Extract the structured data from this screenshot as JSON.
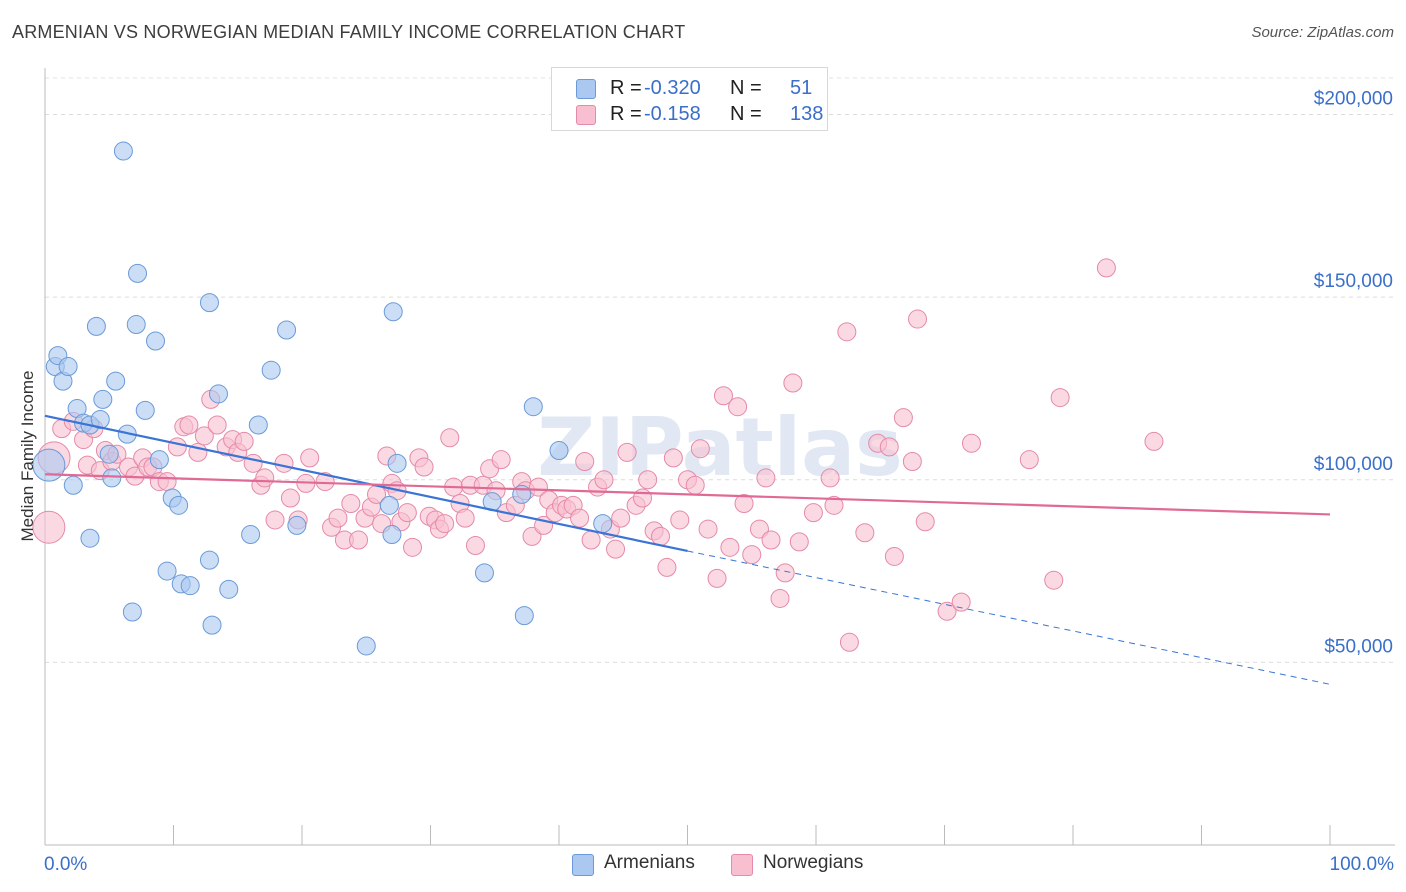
{
  "title": "ARMENIAN VS NORWEGIAN MEDIAN FAMILY INCOME CORRELATION CHART",
  "source": "Source: ZipAtlas.com",
  "watermark": "ZIPatlas",
  "legend": {
    "rows": [
      {
        "r_label": "R =",
        "r_value": "-0.320",
        "n_label": "N =",
        "n_value": "51",
        "color": "#aac8f0",
        "border": "#6a9ad8"
      },
      {
        "r_label": "R =",
        "r_value": "-0.158",
        "n_label": "N =",
        "n_value": "138",
        "color": "#f8bfd0",
        "border": "#e58aa8"
      }
    ]
  },
  "bottom_legend": [
    {
      "label": "Armenians",
      "color": "#aac8f0",
      "border": "#6a9ad8"
    },
    {
      "label": "Norwegians",
      "color": "#f8bfd0",
      "border": "#e58aa8"
    }
  ],
  "chart_data": {
    "type": "scatter",
    "title": "ARMENIAN VS NORWEGIAN MEDIAN FAMILY INCOME CORRELATION CHART",
    "xlabel": "",
    "ylabel": "Median Family Income",
    "xlim": [
      0,
      100
    ],
    "ylim": [
      0,
      210000
    ],
    "x_tick_labels": [
      "0.0%",
      "100.0%"
    ],
    "y_ticks": [
      50000,
      100000,
      150000,
      200000
    ],
    "y_tick_labels": [
      "$50,000",
      "$100,000",
      "$150,000",
      "$200,000"
    ],
    "grid": true,
    "legend_position": "top-center",
    "series": [
      {
        "name": "Armenians",
        "color": "#aac8f0",
        "stroke": "#6a9ad8",
        "trend_color": "#3a74d4",
        "trend": {
          "x0": 0,
          "y0": 117500,
          "x1": 50,
          "y1": 80500,
          "dashed_to_x": 100,
          "dashed_to_y": 44000
        },
        "points": [
          [
            0.3,
            104000
          ],
          [
            0.8,
            131000
          ],
          [
            1.0,
            134000
          ],
          [
            1.4,
            127000
          ],
          [
            1.8,
            131000
          ],
          [
            2.2,
            98500
          ],
          [
            2.5,
            119500
          ],
          [
            3.0,
            115500
          ],
          [
            3.5,
            115000
          ],
          [
            3.5,
            84000
          ],
          [
            4.0,
            142000
          ],
          [
            4.3,
            116500
          ],
          [
            4.5,
            122000
          ],
          [
            5.0,
            107000
          ],
          [
            5.2,
            100500
          ],
          [
            5.5,
            127000
          ],
          [
            6.1,
            190000
          ],
          [
            6.4,
            112500
          ],
          [
            6.8,
            63800
          ],
          [
            7.2,
            156500
          ],
          [
            7.1,
            142500
          ],
          [
            7.8,
            119000
          ],
          [
            8.6,
            138000
          ],
          [
            8.9,
            105500
          ],
          [
            9.5,
            75000
          ],
          [
            9.9,
            95000
          ],
          [
            10.4,
            93000
          ],
          [
            10.6,
            71500
          ],
          [
            11.3,
            71000
          ],
          [
            12.8,
            78000
          ],
          [
            12.8,
            148500
          ],
          [
            13.0,
            60200
          ],
          [
            13.5,
            123500
          ],
          [
            14.3,
            70000
          ],
          [
            16.0,
            85000
          ],
          [
            16.6,
            115000
          ],
          [
            17.6,
            130000
          ],
          [
            18.8,
            141000
          ],
          [
            19.6,
            87500
          ],
          [
            25.0,
            54500
          ],
          [
            26.8,
            93000
          ],
          [
            27.0,
            85000
          ],
          [
            27.1,
            146000
          ],
          [
            27.4,
            104500
          ],
          [
            34.2,
            74500
          ],
          [
            34.8,
            94000
          ],
          [
            37.1,
            96000
          ],
          [
            37.3,
            62800
          ],
          [
            38.0,
            120000
          ],
          [
            40.0,
            108000
          ],
          [
            43.4,
            88000
          ]
        ]
      },
      {
        "name": "Norwegians",
        "color": "#f8bfd0",
        "stroke": "#e58aa8",
        "trend_color": "#e06a95",
        "trend": {
          "x0": 0,
          "y0": 101500,
          "x1": 100,
          "y1": 90500
        },
        "points": [
          [
            0.3,
            87000
          ],
          [
            0.7,
            106000
          ],
          [
            1.3,
            114000
          ],
          [
            2.2,
            116000
          ],
          [
            3.0,
            111000
          ],
          [
            3.3,
            104000
          ],
          [
            3.8,
            114000
          ],
          [
            4.3,
            102500
          ],
          [
            4.7,
            108000
          ],
          [
            5.2,
            105000
          ],
          [
            5.6,
            107000
          ],
          [
            6.5,
            103500
          ],
          [
            7.0,
            101000
          ],
          [
            7.6,
            106000
          ],
          [
            8.0,
            103500
          ],
          [
            8.4,
            103500
          ],
          [
            8.9,
            99500
          ],
          [
            9.5,
            99500
          ],
          [
            10.3,
            109000
          ],
          [
            10.8,
            114500
          ],
          [
            11.2,
            115000
          ],
          [
            11.9,
            107500
          ],
          [
            12.4,
            112000
          ],
          [
            12.9,
            122000
          ],
          [
            13.4,
            115000
          ],
          [
            14.1,
            109000
          ],
          [
            14.6,
            111000
          ],
          [
            15.0,
            107500
          ],
          [
            15.5,
            110500
          ],
          [
            16.2,
            104500
          ],
          [
            16.8,
            98500
          ],
          [
            17.1,
            100500
          ],
          [
            17.9,
            89000
          ],
          [
            18.6,
            104500
          ],
          [
            19.1,
            95000
          ],
          [
            19.7,
            89000
          ],
          [
            20.3,
            99000
          ],
          [
            20.6,
            106000
          ],
          [
            21.8,
            99500
          ],
          [
            22.3,
            87000
          ],
          [
            22.8,
            89500
          ],
          [
            23.3,
            83500
          ],
          [
            23.8,
            93500
          ],
          [
            24.4,
            83500
          ],
          [
            24.9,
            89500
          ],
          [
            25.4,
            92500
          ],
          [
            25.8,
            96000
          ],
          [
            26.2,
            88000
          ],
          [
            26.6,
            106500
          ],
          [
            27.0,
            99000
          ],
          [
            27.4,
            97000
          ],
          [
            27.7,
            88500
          ],
          [
            28.2,
            91000
          ],
          [
            28.6,
            81500
          ],
          [
            29.1,
            106000
          ],
          [
            29.5,
            103500
          ],
          [
            29.9,
            90000
          ],
          [
            30.4,
            89000
          ],
          [
            30.7,
            86500
          ],
          [
            31.1,
            88000
          ],
          [
            31.5,
            111500
          ],
          [
            31.8,
            98000
          ],
          [
            32.3,
            93500
          ],
          [
            32.7,
            89500
          ],
          [
            33.1,
            98500
          ],
          [
            33.5,
            82000
          ],
          [
            34.1,
            98500
          ],
          [
            34.6,
            103000
          ],
          [
            35.1,
            97000
          ],
          [
            35.5,
            105500
          ],
          [
            35.9,
            91000
          ],
          [
            36.6,
            93000
          ],
          [
            37.1,
            99500
          ],
          [
            37.4,
            97000
          ],
          [
            37.9,
            84500
          ],
          [
            38.4,
            98000
          ],
          [
            38.8,
            87500
          ],
          [
            39.2,
            94500
          ],
          [
            39.7,
            91000
          ],
          [
            40.2,
            93000
          ],
          [
            40.6,
            92000
          ],
          [
            41.1,
            93000
          ],
          [
            41.6,
            89500
          ],
          [
            42.0,
            105000
          ],
          [
            42.5,
            83500
          ],
          [
            43.0,
            98000
          ],
          [
            43.5,
            100000
          ],
          [
            44.0,
            86500
          ],
          [
            44.4,
            81000
          ],
          [
            44.8,
            89500
          ],
          [
            45.3,
            107500
          ],
          [
            46.0,
            93000
          ],
          [
            46.5,
            95000
          ],
          [
            46.9,
            100000
          ],
          [
            47.4,
            86000
          ],
          [
            47.9,
            84500
          ],
          [
            48.4,
            76000
          ],
          [
            48.9,
            106000
          ],
          [
            49.4,
            89000
          ],
          [
            50.0,
            100000
          ],
          [
            50.6,
            98500
          ],
          [
            51.0,
            108500
          ],
          [
            51.6,
            86500
          ],
          [
            52.3,
            73000
          ],
          [
            52.8,
            123000
          ],
          [
            53.3,
            81500
          ],
          [
            53.9,
            120000
          ],
          [
            54.4,
            93500
          ],
          [
            55.0,
            79500
          ],
          [
            55.6,
            86500
          ],
          [
            56.1,
            100500
          ],
          [
            56.5,
            83500
          ],
          [
            57.2,
            67500
          ],
          [
            57.6,
            74500
          ],
          [
            58.2,
            126500
          ],
          [
            58.7,
            83000
          ],
          [
            59.8,
            91000
          ],
          [
            61.1,
            100500
          ],
          [
            61.4,
            93000
          ],
          [
            62.4,
            140500
          ],
          [
            62.6,
            55500
          ],
          [
            63.8,
            85500
          ],
          [
            64.8,
            110000
          ],
          [
            65.7,
            109000
          ],
          [
            66.1,
            79000
          ],
          [
            66.8,
            117000
          ],
          [
            67.5,
            105000
          ],
          [
            67.9,
            144000
          ],
          [
            68.5,
            88500
          ],
          [
            70.2,
            64000
          ],
          [
            71.3,
            66500
          ],
          [
            72.1,
            110000
          ],
          [
            76.6,
            105500
          ],
          [
            78.5,
            72500
          ],
          [
            79.0,
            122500
          ],
          [
            82.6,
            158000
          ],
          [
            86.3,
            110500
          ]
        ]
      }
    ]
  }
}
